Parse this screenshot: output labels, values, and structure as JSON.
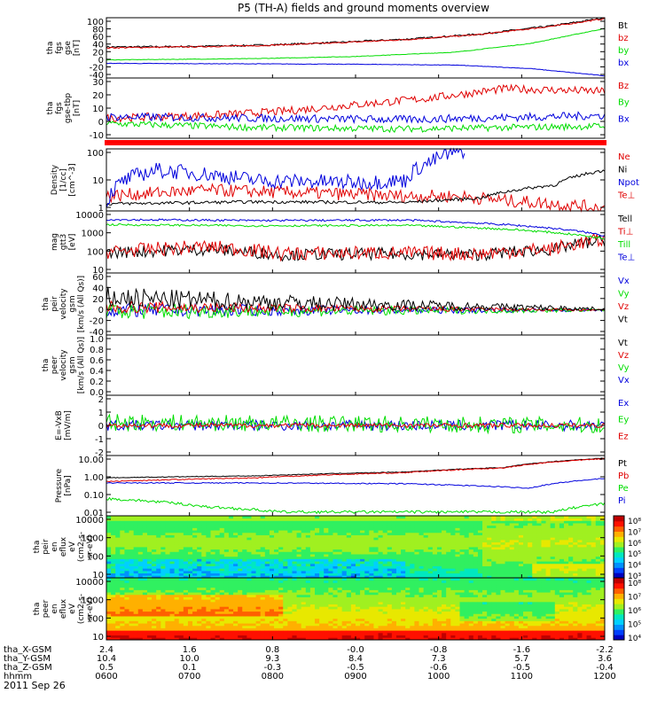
{
  "title": "P5 (TH-A) fields and ground moments overview",
  "date_label": "2011 Sep 26",
  "colors": {
    "black": "#000000",
    "red": "#e00000",
    "green": "#00dd00",
    "blue": "#0000dd",
    "separator": "#ff0000"
  },
  "ephemeris": {
    "rows": [
      {
        "label": "tha_X-GSM",
        "values": [
          "2.4",
          "1.6",
          "0.8",
          "-0.0",
          "-0.8",
          "-1.6",
          "-2.2"
        ]
      },
      {
        "label": "tha_Y-GSM",
        "values": [
          "10.4",
          "10.0",
          "9.3",
          "8.4",
          "7.3",
          "5.7",
          "3.6"
        ]
      },
      {
        "label": "tha_Z-GSM",
        "values": [
          "0.5",
          "0.1",
          "-0.3",
          "-0.5",
          "-0.6",
          "-0.5",
          "-0.4"
        ]
      },
      {
        "label": "hhmm",
        "values": [
          "0600",
          "0700",
          "0800",
          "0900",
          "1000",
          "1100",
          "1200"
        ]
      }
    ]
  },
  "chart_data": [
    {
      "type": "line",
      "ytitle": [
        "tha",
        "fgs",
        "gse",
        "[nT]"
      ],
      "yticks": [
        "100",
        "80",
        "60",
        "40",
        "20",
        "0",
        "-20",
        "-40"
      ],
      "ylim": [
        -40,
        100
      ],
      "series": [
        {
          "name": "Bt",
          "color": "#000000",
          "x": [
            0,
            0.15,
            0.3,
            0.45,
            0.6,
            0.75,
            0.9,
            1
          ],
          "values": [
            32,
            33,
            36,
            42,
            50,
            62,
            82,
            100
          ],
          "noise": 2
        },
        {
          "name": "bz",
          "color": "#e00000",
          "x": [
            0,
            0.15,
            0.3,
            0.45,
            0.6,
            0.75,
            0.9,
            1
          ],
          "values": [
            30,
            32,
            35,
            41,
            49,
            61,
            81,
            98
          ],
          "noise": 1.5
        },
        {
          "name": "by",
          "color": "#00dd00",
          "x": [
            0,
            0.3,
            0.5,
            0.7,
            0.85,
            1
          ],
          "values": [
            2,
            5,
            10,
            20,
            40,
            75
          ],
          "noise": 0.6
        },
        {
          "name": "bx",
          "color": "#0000dd",
          "x": [
            0,
            0.5,
            0.7,
            0.85,
            1
          ],
          "values": [
            -6,
            -8,
            -10,
            -18,
            -35
          ],
          "noise": 0.6
        }
      ]
    },
    {
      "type": "line",
      "ytitle": [
        "tha",
        "fgs",
        "gse-tbp",
        "[nT]"
      ],
      "yticks": [
        "30",
        "20",
        "10",
        "0",
        "-10"
      ],
      "ylim": [
        -15,
        30
      ],
      "series": [
        {
          "name": "Bz",
          "color": "#e00000",
          "x": [
            0,
            0.2,
            0.35,
            0.5,
            0.65,
            0.8,
            1
          ],
          "values": [
            0,
            2,
            5,
            10,
            15,
            22,
            20
          ],
          "noise": 3
        },
        {
          "name": "By",
          "color": "#00dd00",
          "x": [
            0,
            0.3,
            0.6,
            1
          ],
          "values": [
            -4,
            -7,
            -8,
            -6
          ],
          "noise": 2.5
        },
        {
          "name": "Bx",
          "color": "#0000dd",
          "x": [
            0,
            0.3,
            0.6,
            1
          ],
          "values": [
            1,
            0,
            -1,
            2
          ],
          "noise": 3
        }
      ]
    },
    {
      "type": "line",
      "log": true,
      "ytitle": [
        "Density",
        "[1/cc]",
        "[cm^-3]"
      ],
      "yticks": [
        "100",
        "10",
        "1"
      ],
      "ylim": [
        0.8,
        200
      ],
      "series": [
        {
          "name": "Ne",
          "color": "#e00000",
          "x": [
            0,
            0.2,
            0.4,
            0.6,
            0.7,
            0.8,
            1
          ],
          "values": [
            3,
            5,
            4,
            3,
            3,
            2,
            1
          ],
          "noise": 0.25
        },
        {
          "name": "Ni",
          "color": "#000000",
          "x": [
            0,
            0.3,
            0.6,
            0.75,
            0.9,
            1
          ],
          "values": [
            1.5,
            1.8,
            1.7,
            2.5,
            8,
            30
          ],
          "noise": 0.06
        },
        {
          "name": "Npot",
          "color": "#0000dd",
          "x": [
            0,
            0.1,
            0.3,
            0.5,
            0.6,
            0.65,
            0.72
          ],
          "values": [
            1.2,
            30,
            12,
            10,
            12,
            60,
            180
          ],
          "noise": 0.3
        }
      ],
      "labels": [
        {
          "name": "Te⊥",
          "color": "#e00000"
        }
      ]
    },
    {
      "type": "line",
      "log": true,
      "ytitle": [
        "mag",
        "gtt3",
        "[eV]"
      ],
      "yticks": [
        "10000",
        "1000",
        "100",
        "10"
      ],
      "ylim": [
        10,
        12000
      ],
      "series": [
        {
          "name": "Tell",
          "color": "#000000",
          "x": [
            0,
            0.2,
            0.35,
            0.55,
            0.75,
            0.9,
            1
          ],
          "values": [
            100,
            150,
            80,
            90,
            80,
            150,
            400
          ],
          "noise": 0.3
        },
        {
          "name": "Ti⊥",
          "color": "#e00000",
          "x": [
            0,
            0.2,
            0.35,
            0.55,
            0.75,
            0.9,
            1
          ],
          "values": [
            110,
            200,
            90,
            100,
            90,
            160,
            450
          ],
          "noise": 0.35
        },
        {
          "name": "Till",
          "color": "#00dd00",
          "x": [
            0,
            0.3,
            0.6,
            0.8,
            1
          ],
          "values": [
            2500,
            2200,
            2300,
            1500,
            500
          ],
          "noise": 0.05
        },
        {
          "name": "Te⊥",
          "color": "#0000dd",
          "x": [
            0,
            0.3,
            0.6,
            0.8,
            1
          ],
          "values": [
            4500,
            4000,
            4200,
            2500,
            700
          ],
          "noise": 0.05
        }
      ]
    },
    {
      "type": "line",
      "ytitle": [
        "tha",
        "peir",
        "velocity",
        "gsm",
        "[km/s (All Qs)]"
      ],
      "yticks": [
        "60",
        "40",
        "20",
        "0",
        "-20",
        "-40"
      ],
      "ylim": [
        -40,
        60
      ],
      "series": [
        {
          "name": "Vx",
          "color": "#0000dd",
          "x": [
            0,
            1
          ],
          "values": [
            0,
            0
          ],
          "noise": 12,
          "decay": true
        },
        {
          "name": "Vy",
          "color": "#00dd00",
          "x": [
            0,
            1
          ],
          "values": [
            -2,
            0
          ],
          "noise": 14,
          "decay": true
        },
        {
          "name": "Vz",
          "color": "#e00000",
          "x": [
            0,
            1
          ],
          "values": [
            5,
            0
          ],
          "noise": 10,
          "decay": true
        },
        {
          "name": "Vt",
          "color": "#000000",
          "x": [
            0,
            0.5,
            1
          ],
          "values": [
            20,
            10,
            2
          ],
          "noise": 18,
          "decay": true
        }
      ]
    },
    {
      "type": "line",
      "ytitle": [
        "tha",
        "peer",
        "velocity",
        "gsm",
        "[km/s (All Qs)]"
      ],
      "yticks": [
        "1.0",
        "0.8",
        "0.6",
        "0.4",
        "0.2",
        "0.0"
      ],
      "ylim": [
        0,
        1
      ],
      "series": [
        {
          "name": "Vt",
          "color": "#000000",
          "x": [],
          "values": []
        },
        {
          "name": "Vz",
          "color": "#e00000",
          "x": [],
          "values": []
        },
        {
          "name": "Vy",
          "color": "#00dd00",
          "x": [],
          "values": []
        },
        {
          "name": "Vx",
          "color": "#0000dd",
          "x": [],
          "values": []
        }
      ]
    },
    {
      "type": "line",
      "ytitle": [
        "E=-VxB",
        "[mV/m]"
      ],
      "yticks": [
        "2",
        "1",
        "0",
        "-1",
        "-2"
      ],
      "ylim": [
        -2,
        2
      ],
      "series": [
        {
          "name": "Ex",
          "color": "#0000dd",
          "x": [
            0,
            1
          ],
          "values": [
            0,
            0
          ],
          "noise": 0.35
        },
        {
          "name": "Ey",
          "color": "#00dd00",
          "x": [
            0,
            1
          ],
          "values": [
            0.2,
            0
          ],
          "noise": 0.55
        },
        {
          "name": "Ez",
          "color": "#e00000",
          "x": [
            0,
            1
          ],
          "values": [
            0,
            0
          ],
          "noise": 0.15
        }
      ]
    },
    {
      "type": "line",
      "log": true,
      "ytitle": [
        "Pressure",
        "[nPa]"
      ],
      "yticks": [
        "10.00",
        "1.00",
        "0.10",
        "0.01"
      ],
      "ylim": [
        0.006,
        20
      ],
      "series": [
        {
          "name": "Pt",
          "color": "#000000",
          "x": [
            0,
            0.3,
            0.6,
            0.8,
            1
          ],
          "values": [
            1.0,
            1.3,
            2.2,
            4,
            14
          ],
          "noise": 0.02
        },
        {
          "name": "Pb",
          "color": "#e00000",
          "x": [
            0,
            0.3,
            0.6,
            0.8,
            1
          ],
          "values": [
            0.6,
            1.0,
            2.0,
            3.8,
            13
          ],
          "noise": 0.03
        },
        {
          "name": "Pe",
          "color": "#00dd00",
          "x": [
            0,
            0.2,
            0.35,
            0.6,
            0.9,
            1
          ],
          "values": [
            0.06,
            0.02,
            0.01,
            0.01,
            0.01,
            0.03
          ],
          "noise": 0.08
        },
        {
          "name": "Pi",
          "color": "#0000dd",
          "x": [
            0,
            0.3,
            0.6,
            0.85,
            1
          ],
          "values": [
            0.5,
            0.5,
            0.45,
            0.25,
            0.9
          ],
          "noise": 0.03
        }
      ]
    },
    {
      "type": "heatmap",
      "ytitle": [
        "tha",
        "peir",
        "en",
        "eflux",
        "eV",
        "(cm2-s-",
        "sr-eV)"
      ],
      "yticks": [
        "10000",
        "1000",
        "100",
        "10"
      ],
      "ylim": [
        8,
        30000
      ],
      "colorbar_ticks": [
        "10⁸",
        "10⁷",
        "10⁶",
        "10⁵",
        "10⁴",
        "10³"
      ],
      "style": "ions"
    },
    {
      "type": "heatmap",
      "ytitle": [
        "tha",
        "peer",
        "en",
        "eflux",
        "eV",
        "(cm2-s-",
        "sr-eV)"
      ],
      "yticks": [
        "10000",
        "1000",
        "100",
        "10"
      ],
      "ylim": [
        8,
        30000
      ],
      "colorbar_ticks": [
        "10⁸",
        "10⁷",
        "10⁶",
        "10⁵",
        "10⁴"
      ],
      "style": "electrons"
    }
  ]
}
